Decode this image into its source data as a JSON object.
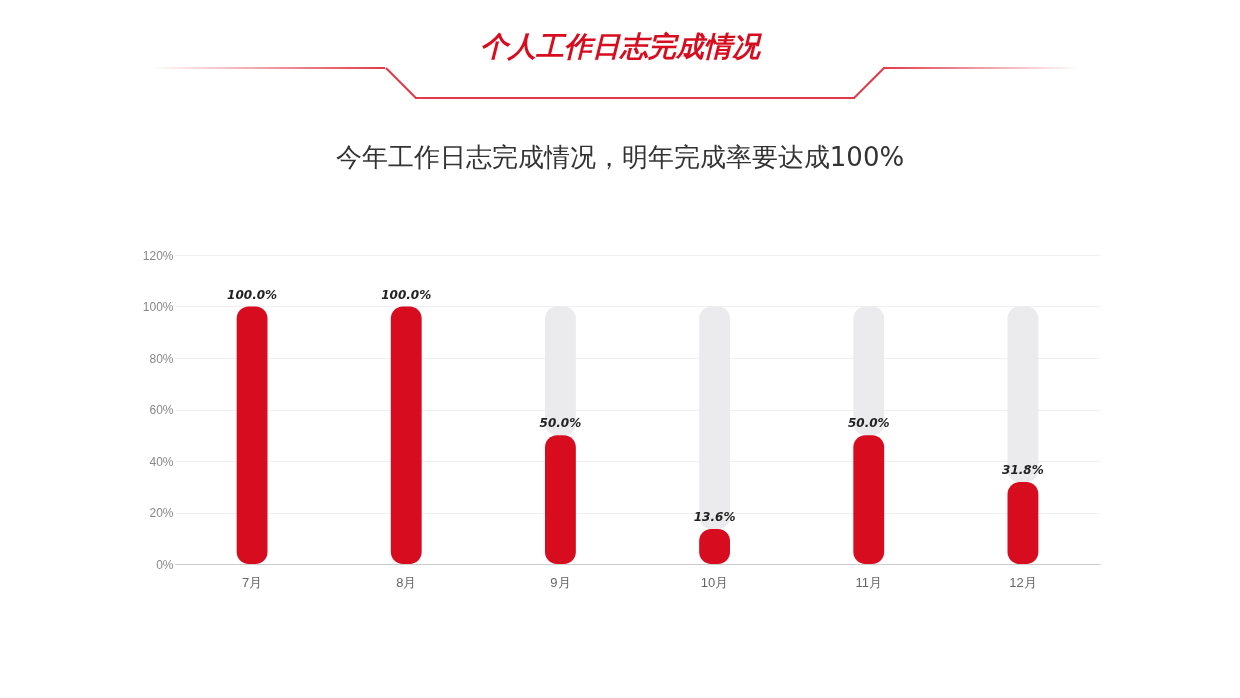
{
  "chart_data": {
    "type": "bar",
    "title": "个人工作日志完成情况",
    "subtitle": "今年工作日志完成情况，明年完成率要达成100%",
    "categories": [
      "7月",
      "8月",
      "9月",
      "10月",
      "11月",
      "12月"
    ],
    "stacked": true,
    "series": [
      {
        "color": "#d70c1e",
        "values": [
          100,
          100,
          50,
          13.6,
          50,
          31.8
        ],
        "value_labels": [
          "100.0%",
          "100.0%",
          "50.0%",
          "13.6%",
          "50.0%",
          "31.8%"
        ]
      },
      {
        "color": "#ebebed",
        "values": [
          0,
          0,
          50,
          86.4,
          50,
          68.2
        ]
      }
    ],
    "ylim": [
      0,
      120
    ],
    "yticks": [
      {
        "value": 0,
        "label": "0%"
      },
      {
        "value": 20,
        "label": "20%"
      },
      {
        "value": 40,
        "label": "40%"
      },
      {
        "value": 60,
        "label": "60%"
      },
      {
        "value": 80,
        "label": "80%"
      },
      {
        "value": 100,
        "label": "100%"
      },
      {
        "value": 120,
        "label": "120%"
      }
    ],
    "grid": "y"
  }
}
